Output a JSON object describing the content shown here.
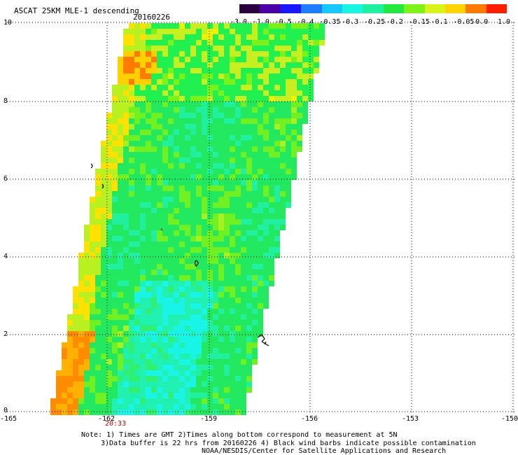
{
  "header": {
    "title": "ASCAT 25KM MLE-1 descending",
    "date": "20160226"
  },
  "colorbar": {
    "labels": [
      "-3.0",
      "-1.0",
      "-0.5",
      "-0.4",
      "-0.35",
      "-0.3",
      "-0.25",
      "-0.2",
      "-0.15",
      "-0.1",
      "-0.05",
      "0.0",
      "1.0"
    ],
    "colors": [
      "#2a003f",
      "#4b00a8",
      "#1818ff",
      "#1f7dff",
      "#17c8ff",
      "#18f5e0",
      "#1ef2a0",
      "#22e840",
      "#7df218",
      "#d8f41a",
      "#ffd200",
      "#ff7a00",
      "#ff1d00"
    ]
  },
  "axes": {
    "y_ticks": [
      "10",
      "8",
      "6",
      "4",
      "2",
      "0"
    ],
    "x_ticks": [
      "-165",
      "-162",
      "-159",
      "-156",
      "-153",
      "-150"
    ]
  },
  "time_label": "20:33",
  "notes": {
    "line1": "Note: 1) Times are GMT 2)Times along bottom correspond to measurement at 5N",
    "line2": "3)Data buffer is 22 hrs from 20160226 4) Black wind barbs indicate possible contamination",
    "line3": "NOAA/NESDIS/Center for Satellite Applications and Research"
  }
}
